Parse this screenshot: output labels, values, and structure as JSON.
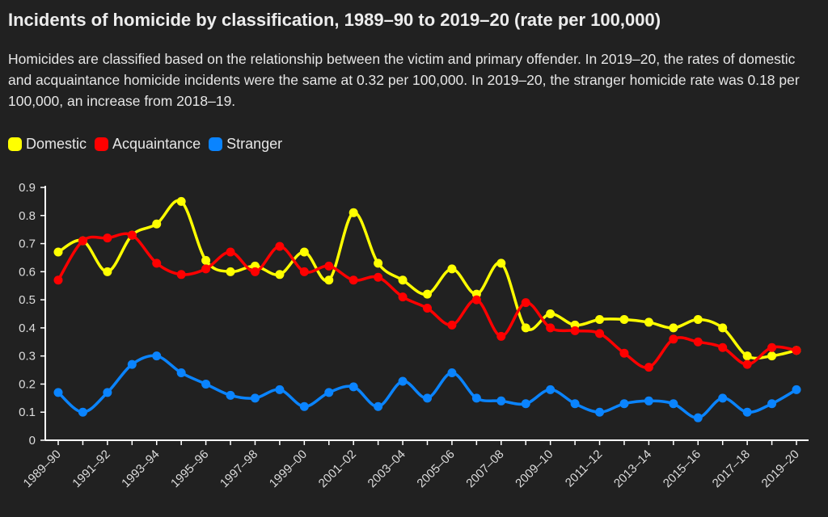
{
  "title": "Incidents of homicide by classification, 1989–90 to 2019–20 (rate per 100,000)",
  "subtitle": "Homicides are classified based on the relationship between the victim and primary offender. In 2019–20, the rates of domestic and acquaintance homicide incidents were the same at 0.32 per 100,000. In 2019–20, the stranger homicide rate was 0.18 per 100,000, an increase from 2018–19.",
  "colors": {
    "background": "#212121",
    "domestic": "#ffff00",
    "acquaintance": "#ff0000",
    "stranger": "#0a84ff",
    "axis": "#ffffff"
  },
  "chart_data": {
    "type": "line",
    "title": "Incidents of homicide by classification, 1989–90 to 2019–20 (rate per 100,000)",
    "xlabel": "",
    "ylabel": "",
    "ylim": [
      0,
      0.9
    ],
    "yticks": [
      "0",
      "0.1",
      "0.2",
      "0.3",
      "0.4",
      "0.5",
      "0.6",
      "0.7",
      "0.8",
      "0.9"
    ],
    "grid": false,
    "legend": "top-left",
    "x": [
      "1989–90",
      "1990–91",
      "1991–92",
      "1992–93",
      "1993–94",
      "1994–95",
      "1995–96",
      "1996–97",
      "1997–98",
      "1998–99",
      "1999–00",
      "2000–01",
      "2001–02",
      "2002–03",
      "2003–04",
      "2004–05",
      "2005–06",
      "2006–07",
      "2007–08",
      "2008–09",
      "2009–10",
      "2010–11",
      "2011–12",
      "2012–13",
      "2013–14",
      "2014–15",
      "2015–16",
      "2016–17",
      "2017–18",
      "2018–19",
      "2019–20"
    ],
    "xtick_labels": [
      "1989–90",
      "1991–92",
      "1993–94",
      "1995–96",
      "1997–98",
      "1999–00",
      "2001–02",
      "2003–04",
      "2005–06",
      "2007–08",
      "2009–10",
      "2011–12",
      "2013–14",
      "2015–16",
      "2017–18",
      "2019–20"
    ],
    "series": [
      {
        "name": "Domestic",
        "color": "#ffff00",
        "values": [
          0.67,
          0.71,
          0.6,
          0.73,
          0.77,
          0.85,
          0.64,
          0.6,
          0.62,
          0.59,
          0.67,
          0.57,
          0.81,
          0.63,
          0.57,
          0.52,
          0.61,
          0.52,
          0.63,
          0.4,
          0.45,
          0.41,
          0.43,
          0.43,
          0.42,
          0.4,
          0.43,
          0.4,
          0.3,
          0.3,
          0.32
        ]
      },
      {
        "name": "Acquaintance",
        "color": "#ff0000",
        "values": [
          0.57,
          0.71,
          0.72,
          0.73,
          0.63,
          0.59,
          0.61,
          0.67,
          0.6,
          0.69,
          0.6,
          0.62,
          0.57,
          0.58,
          0.51,
          0.47,
          0.41,
          0.5,
          0.37,
          0.49,
          0.4,
          0.39,
          0.38,
          0.31,
          0.26,
          0.36,
          0.35,
          0.33,
          0.27,
          0.33,
          0.32
        ]
      },
      {
        "name": "Stranger",
        "color": "#0a84ff",
        "values": [
          0.17,
          0.1,
          0.17,
          0.27,
          0.3,
          0.24,
          0.2,
          0.16,
          0.15,
          0.18,
          0.12,
          0.17,
          0.19,
          0.12,
          0.21,
          0.15,
          0.24,
          0.15,
          0.14,
          0.13,
          0.18,
          0.13,
          0.1,
          0.13,
          0.14,
          0.13,
          0.08,
          0.15,
          0.1,
          0.13,
          0.18
        ]
      }
    ]
  }
}
